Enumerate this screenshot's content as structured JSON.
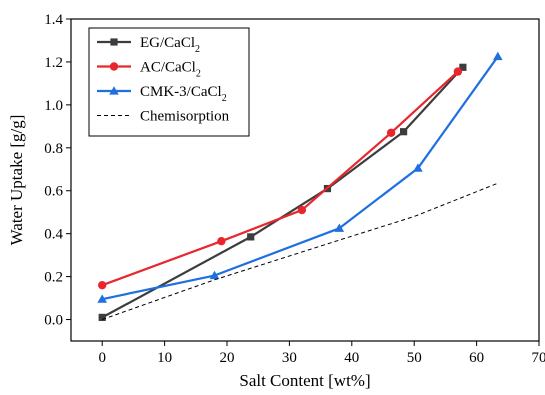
{
  "chart_data": {
    "type": "line",
    "title": "",
    "xlabel": "Salt Content [wt%]",
    "ylabel": "Water Uptake [g/g]",
    "xlim": [
      -5,
      70
    ],
    "ylim": [
      -0.1,
      1.4
    ],
    "x_ticks": [
      0,
      10,
      20,
      30,
      40,
      50,
      60,
      70
    ],
    "y_ticks": [
      0.0,
      0.2,
      0.4,
      0.6,
      0.8,
      1.0,
      1.2,
      1.4
    ],
    "x_tick_labels": [
      "0",
      "10",
      "20",
      "30",
      "40",
      "50",
      "60",
      "70"
    ],
    "y_tick_labels": [
      "0.0",
      "0.2",
      "0.4",
      "0.6",
      "0.8",
      "1.0",
      "1.2",
      "1.4"
    ],
    "grid": false,
    "legend_position": "top-left",
    "series": [
      {
        "name": "EG/CaCl2",
        "legend_main": "EG/CaCl",
        "legend_sub": "2",
        "color": "#3d3d3d",
        "marker": "square",
        "line": "solid",
        "x": [
          0,
          23.8,
          36.1,
          48.3,
          57.8
        ],
        "y": [
          0.01,
          0.385,
          0.61,
          0.875,
          1.175
        ]
      },
      {
        "name": "AC/CaCl2",
        "legend_main": "AC/CaCl",
        "legend_sub": "2",
        "color": "#e8262c",
        "marker": "circle",
        "line": "solid",
        "x": [
          0,
          19.1,
          32.0,
          46.3,
          57.0
        ],
        "y": [
          0.16,
          0.365,
          0.51,
          0.87,
          1.155
        ]
      },
      {
        "name": "CMK-3/CaCl2",
        "legend_main": "CMK-3/CaCl",
        "legend_sub": "2",
        "color": "#1f6fe0",
        "marker": "triangle",
        "line": "solid",
        "x": [
          0,
          18.0,
          38.0,
          50.6,
          63.4
        ],
        "y": [
          0.095,
          0.205,
          0.425,
          0.705,
          1.225
        ]
      },
      {
        "name": "Chemisorption",
        "legend_main": "Chemisorption",
        "legend_sub": "",
        "color": "#000000",
        "marker": "none",
        "line": "dashed",
        "x": [
          0,
          18,
          38,
          50,
          63.4
        ],
        "y": [
          0.0,
          0.185,
          0.37,
          0.48,
          0.635
        ]
      }
    ]
  }
}
